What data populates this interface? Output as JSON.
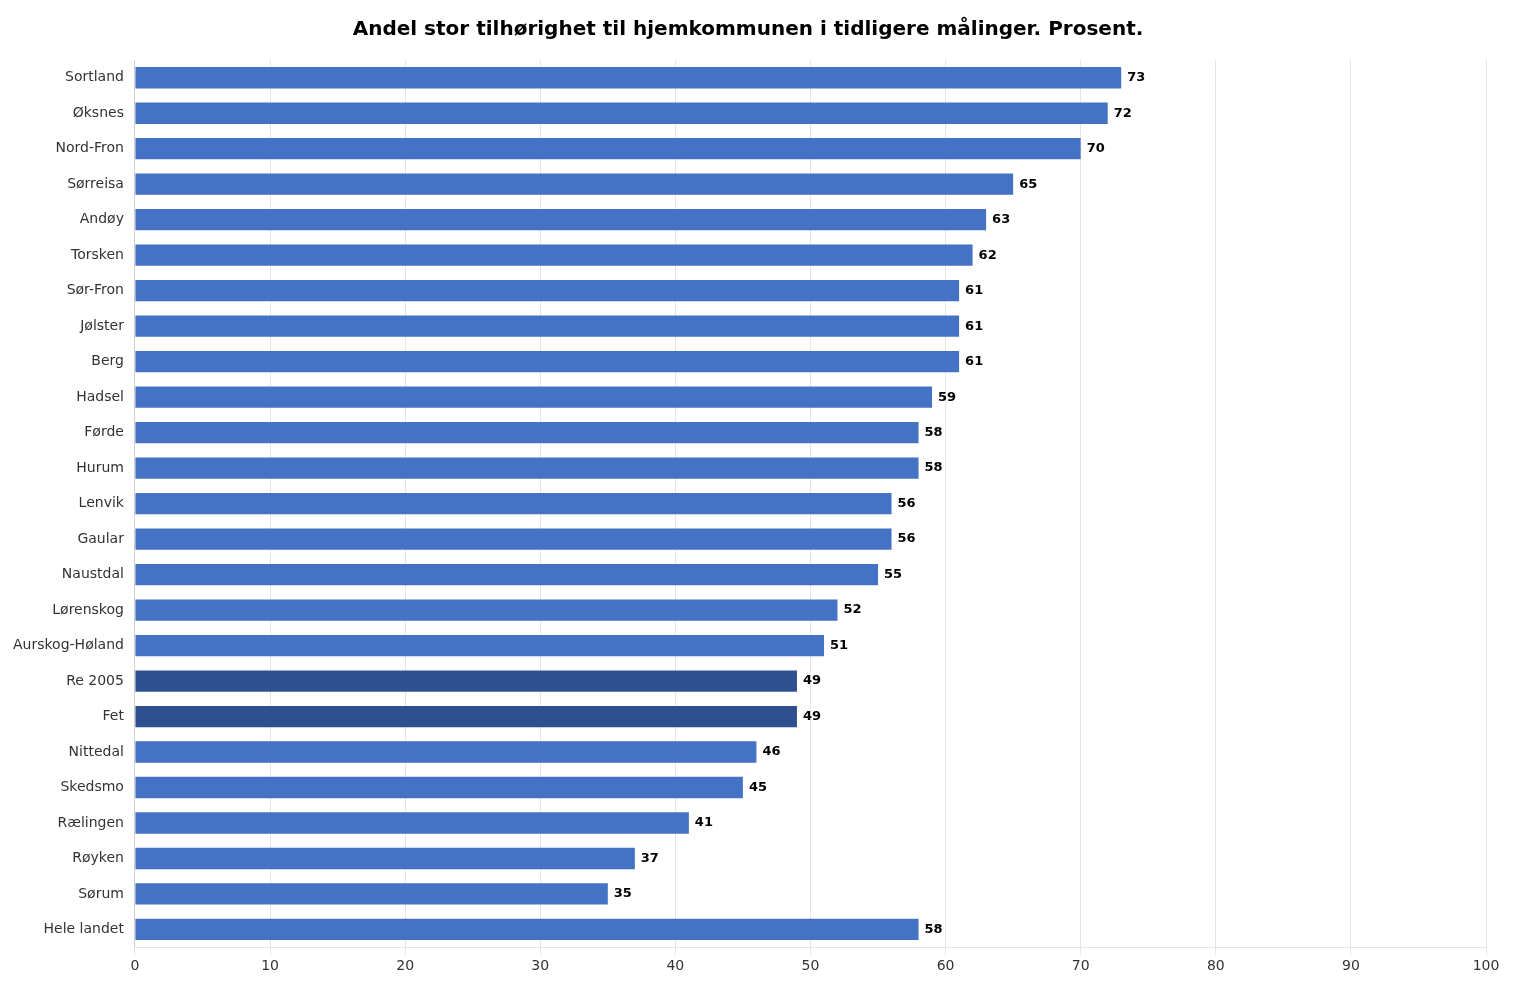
{
  "chart_data": {
    "type": "bar",
    "orientation": "horizontal",
    "title": "Andel stor tilhørighet til hjemkommunen i tidligere målinger. Prosent.",
    "categories": [
      "Hele landet",
      "Sørum",
      "Røyken",
      "Rælingen",
      "Skedsmo",
      "Nittedal",
      "Fet",
      "Re 2005",
      "Aurskog-Høland",
      "Lørenskog",
      "Naustdal",
      "Gaular",
      "Lenvik",
      "Hurum",
      "Førde",
      "Hadsel",
      "Berg",
      "Jølster",
      "Sør-Fron",
      "Torsken",
      "Andøy",
      "Sørreisa",
      "Nord-Fron",
      "Øksnes",
      "Sortland"
    ],
    "values": [
      58,
      35,
      37,
      41,
      45,
      46,
      49,
      49,
      51,
      52,
      55,
      56,
      56,
      58,
      58,
      59,
      61,
      61,
      61,
      62,
      63,
      65,
      70,
      72,
      73
    ],
    "colors": [
      "#4472C4",
      "#4472C4",
      "#4472C4",
      "#4472C4",
      "#4472C4",
      "#4472C4",
      "#2E5090",
      "#2E5090",
      "#4472C4",
      "#4472C4",
      "#4472C4",
      "#4472C4",
      "#4472C4",
      "#4472C4",
      "#4472C4",
      "#4472C4",
      "#4472C4",
      "#4472C4",
      "#4472C4",
      "#4472C4",
      "#4472C4",
      "#4472C4",
      "#4472C4",
      "#4472C4",
      "#4472C4"
    ],
    "xlim": [
      0,
      100
    ],
    "xticks": [
      0,
      10,
      20,
      30,
      40,
      50,
      60,
      70,
      80,
      90,
      100
    ],
    "grid": true,
    "data_labels": true
  }
}
